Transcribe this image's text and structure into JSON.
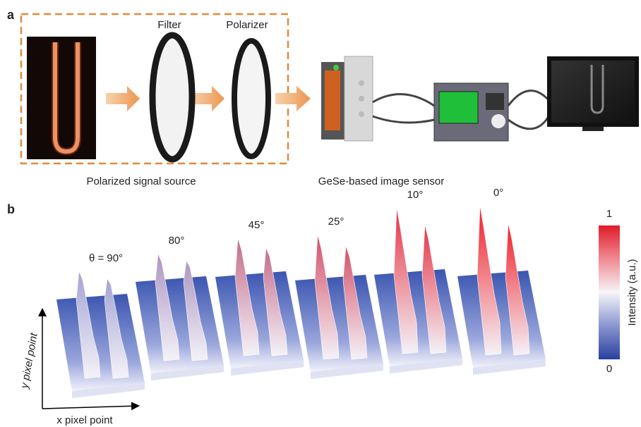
{
  "panel_a": {
    "label": "a",
    "filter": "Filter",
    "polarizer": "Polarizer",
    "source_caption": "Polarized signal source",
    "sensor_caption": "GeSe-based image sensor"
  },
  "panel_b": {
    "label": "b",
    "angles": [
      "θ = 90°",
      "80°",
      "45°",
      "25°",
      "10°",
      "0°"
    ],
    "colorbar": {
      "max": "1",
      "min": "0",
      "title": "Intensity (a.u.)"
    },
    "y_axis": "y pixel point",
    "x_axis": "x pixel point"
  }
}
